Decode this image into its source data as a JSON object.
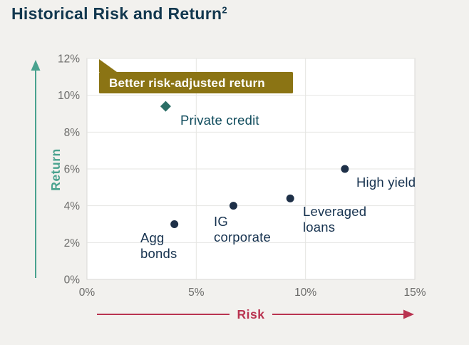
{
  "page": {
    "title": "Historical Risk and Return",
    "title_superscript": "2"
  },
  "colors": {
    "background": "#f2f1ee",
    "title": "#12384f",
    "plot_background": "#ffffff",
    "plot_border": "#d8d8d5",
    "grid": "#e5e5e2",
    "tick_label": "#6c6c6a",
    "return_accent": "#49a28e",
    "risk_accent": "#b93350",
    "banner_fill": "#8b7414",
    "banner_text": "#ffffff",
    "marker_navy": "#1e3048",
    "marker_teal": "#2b6e66",
    "point_label": "#16324f",
    "private_credit_label": "#0f4b5c"
  },
  "chart_data": {
    "type": "scatter",
    "title": "Historical Risk and Return",
    "xlabel": "Risk",
    "ylabel": "Return",
    "xlim": [
      0,
      15
    ],
    "ylim": [
      0,
      12
    ],
    "x_ticks": [
      0,
      5,
      10,
      15
    ],
    "y_ticks": [
      0,
      2,
      4,
      6,
      8,
      10,
      12
    ],
    "tick_suffix": "%",
    "grid": true,
    "legend": "none",
    "annotation": "Better risk-adjusted return",
    "points": [
      {
        "name": "Private credit",
        "x": 3.6,
        "y": 9.4,
        "marker": "diamond",
        "label_lines": [
          "Private credit"
        ]
      },
      {
        "name": "Agg bonds",
        "x": 4.0,
        "y": 3.0,
        "marker": "circle",
        "label_lines": [
          "Agg",
          "bonds"
        ]
      },
      {
        "name": "IG corporate",
        "x": 6.7,
        "y": 4.0,
        "marker": "circle",
        "label_lines": [
          "IG",
          "corporate"
        ]
      },
      {
        "name": "Leveraged loans",
        "x": 9.3,
        "y": 4.4,
        "marker": "circle",
        "label_lines": [
          "Leveraged",
          "loans"
        ]
      },
      {
        "name": "High yield",
        "x": 11.8,
        "y": 6.0,
        "marker": "circle",
        "label_lines": [
          "High yield"
        ]
      }
    ]
  }
}
